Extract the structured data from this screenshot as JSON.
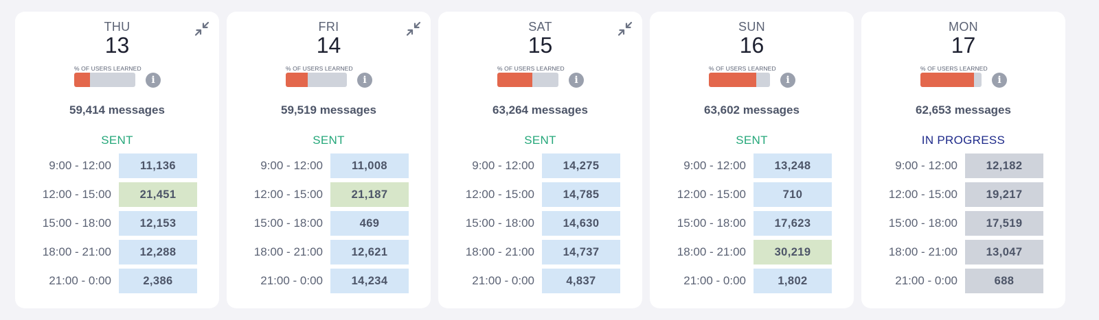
{
  "colors": {
    "sent": "#25a77a",
    "in_progress": "#1e2a8a",
    "learned_fill": "#e3674c",
    "slot_default": "#d4e6f7",
    "slot_peak": "#d7e6c9",
    "slot_pending": "#cfd3db"
  },
  "learned_label": "% OF USERS LEARNED",
  "icons": {
    "collapse": "collapse-arrows-icon",
    "info": "info-icon"
  },
  "days": [
    {
      "dow": "THU",
      "date": "13",
      "learned_fraction": 0.26,
      "messages": "59,414 messages",
      "status": "SENT",
      "status_kind": "sent",
      "collapsible": true,
      "slots": [
        {
          "time": "9:00 - 12:00",
          "count": "11,136",
          "kind": "default"
        },
        {
          "time": "12:00 - 15:00",
          "count": "21,451",
          "kind": "peak"
        },
        {
          "time": "15:00 - 18:00",
          "count": "12,153",
          "kind": "default"
        },
        {
          "time": "18:00 - 21:00",
          "count": "12,288",
          "kind": "default"
        },
        {
          "time": "21:00 - 0:00",
          "count": "2,386",
          "kind": "default"
        }
      ]
    },
    {
      "dow": "FRI",
      "date": "14",
      "learned_fraction": 0.36,
      "messages": "59,519 messages",
      "status": "SENT",
      "status_kind": "sent",
      "collapsible": true,
      "slots": [
        {
          "time": "9:00 - 12:00",
          "count": "11,008",
          "kind": "default"
        },
        {
          "time": "12:00 - 15:00",
          "count": "21,187",
          "kind": "peak"
        },
        {
          "time": "15:00 - 18:00",
          "count": "469",
          "kind": "default"
        },
        {
          "time": "18:00 - 21:00",
          "count": "12,621",
          "kind": "default"
        },
        {
          "time": "21:00 - 0:00",
          "count": "14,234",
          "kind": "default"
        }
      ]
    },
    {
      "dow": "SAT",
      "date": "15",
      "learned_fraction": 0.57,
      "messages": "63,264 messages",
      "status": "SENT",
      "status_kind": "sent",
      "collapsible": true,
      "slots": [
        {
          "time": "9:00 - 12:00",
          "count": "14,275",
          "kind": "default"
        },
        {
          "time": "12:00 - 15:00",
          "count": "14,785",
          "kind": "default"
        },
        {
          "time": "15:00 - 18:00",
          "count": "14,630",
          "kind": "default"
        },
        {
          "time": "18:00 - 21:00",
          "count": "14,737",
          "kind": "default"
        },
        {
          "time": "21:00 - 0:00",
          "count": "4,837",
          "kind": "default"
        }
      ]
    },
    {
      "dow": "SUN",
      "date": "16",
      "learned_fraction": 0.78,
      "messages": "63,602 messages",
      "status": "SENT",
      "status_kind": "sent",
      "collapsible": false,
      "slots": [
        {
          "time": "9:00 - 12:00",
          "count": "13,248",
          "kind": "default"
        },
        {
          "time": "12:00 - 15:00",
          "count": "710",
          "kind": "default"
        },
        {
          "time": "15:00 - 18:00",
          "count": "17,623",
          "kind": "default"
        },
        {
          "time": "18:00 - 21:00",
          "count": "30,219",
          "kind": "peak"
        },
        {
          "time": "21:00 - 0:00",
          "count": "1,802",
          "kind": "default"
        }
      ]
    },
    {
      "dow": "MON",
      "date": "17",
      "learned_fraction": 0.88,
      "messages": "62,653 messages",
      "status": "IN PROGRESS",
      "status_kind": "progress",
      "collapsible": false,
      "slots": [
        {
          "time": "9:00 - 12:00",
          "count": "12,182",
          "kind": "pending"
        },
        {
          "time": "12:00 - 15:00",
          "count": "19,217",
          "kind": "pending"
        },
        {
          "time": "15:00 - 18:00",
          "count": "17,519",
          "kind": "pending"
        },
        {
          "time": "18:00 - 21:00",
          "count": "13,047",
          "kind": "pending"
        },
        {
          "time": "21:00 - 0:00",
          "count": "688",
          "kind": "pending"
        }
      ]
    }
  ]
}
